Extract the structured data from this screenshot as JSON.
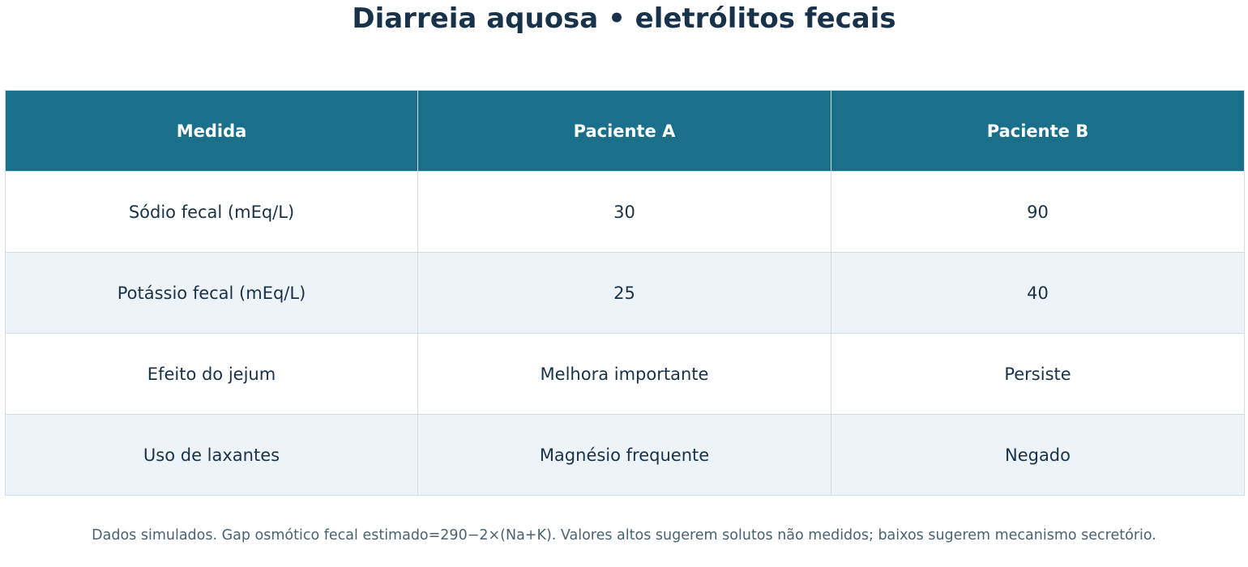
{
  "title": "Diarreia aquosa • eletrólitos fecais",
  "table": {
    "headers": [
      "Medida",
      "Paciente A",
      "Paciente B"
    ],
    "rows": [
      [
        "Sódio fecal (mEq/L)",
        "30",
        "90"
      ],
      [
        "Potássio fecal (mEq/L)",
        "25",
        "40"
      ],
      [
        "Efeito do jejum",
        "Melhora importante",
        "Persiste"
      ],
      [
        "Uso de laxantes",
        "Magnésio frequente",
        "Negado"
      ]
    ]
  },
  "footnote": "Dados simulados. Gap osmótico fecal estimado=290−2×(Na+K). Valores altos sugerem solutos não medidos; baixos sugerem mecanismo secretório.",
  "colors": {
    "header_bg": "#1a6f8a",
    "header_text": "#ffffff",
    "text": "#17324a",
    "alt_row_bg": "#eef3f8",
    "border": "#cfdde6",
    "footnote_text": "#4a6272"
  }
}
